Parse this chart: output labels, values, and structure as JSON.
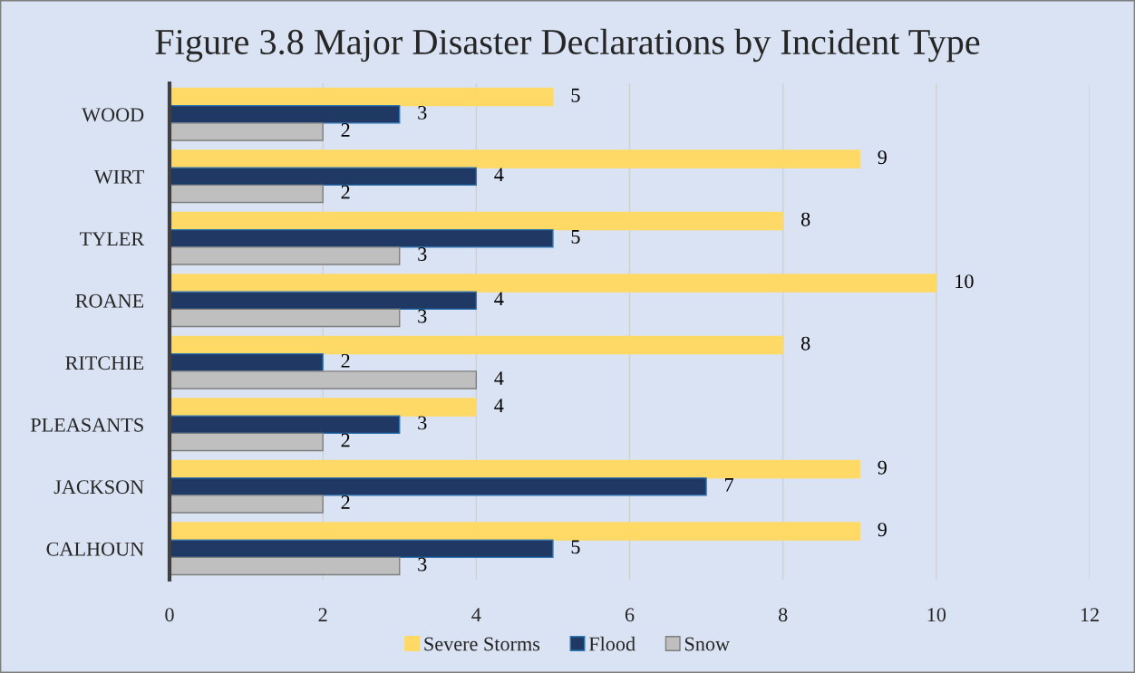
{
  "chart_data": {
    "type": "bar",
    "orientation": "horizontal",
    "title": "Figure 3.8 Major Disaster Declarations by Incident Type",
    "categories": [
      "WOOD",
      "WIRT",
      "TYLER",
      "ROANE",
      "RITCHIE",
      "PLEASANTS",
      "JACKSON",
      "CALHOUN"
    ],
    "series": [
      {
        "name": "Severe Storms",
        "color": "#ffd966",
        "values": [
          5,
          9,
          8,
          10,
          8,
          4,
          9,
          9
        ]
      },
      {
        "name": "Flood",
        "color": "#1f3864",
        "values": [
          3,
          4,
          5,
          4,
          2,
          3,
          7,
          5
        ]
      },
      {
        "name": "Snow",
        "color": "#bfbfbf",
        "values": [
          2,
          2,
          3,
          3,
          4,
          2,
          2,
          3
        ]
      }
    ],
    "xlim": [
      0,
      12
    ],
    "xticks": [
      0,
      2,
      4,
      6,
      8,
      10,
      12
    ],
    "grid": "x",
    "legend": "bottom",
    "data_labels": true
  }
}
